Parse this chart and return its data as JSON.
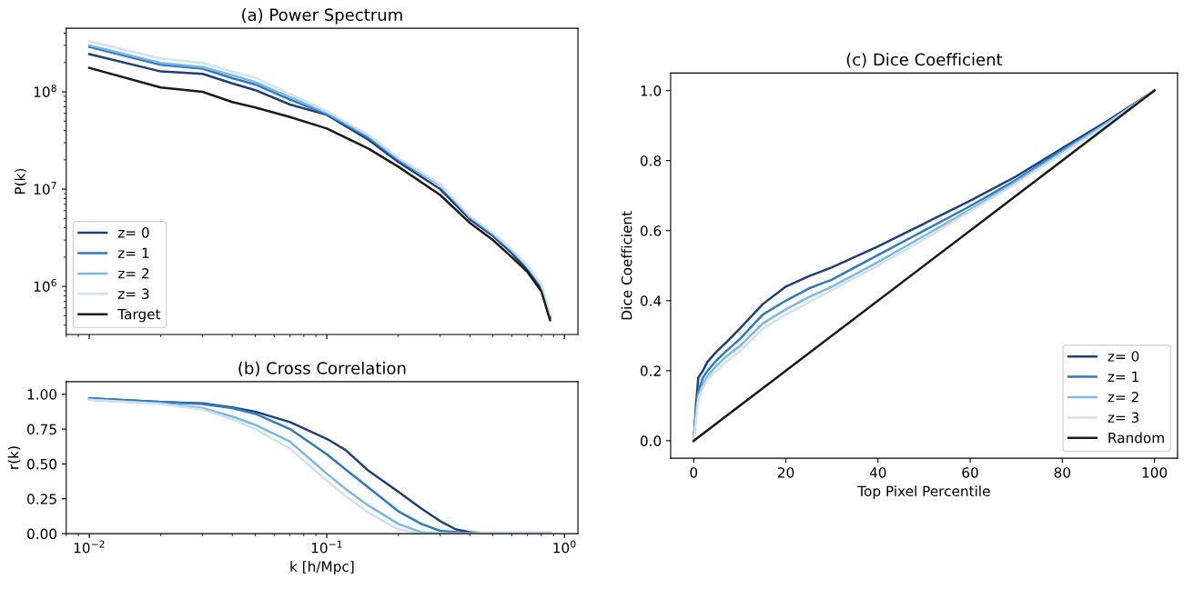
{
  "chart_data": [
    {
      "type": "line",
      "title": "(a) Power Spectrum",
      "ylabel": "P(k)",
      "log": "xy",
      "legend": "bottom left",
      "grid": false,
      "tick_labels": "y",
      "xlim": [
        0.008,
        1.14
      ],
      "xticks": [
        {
          "value": 0.01,
          "label": null
        },
        {
          "value": 0.1,
          "label": null
        },
        {
          "value": 1,
          "label": null
        }
      ],
      "ylim": [
        320000,
        450000000
      ],
      "yticks": [
        {
          "value": 1000000,
          "label": "10$^{6}$"
        },
        {
          "value": 10000000,
          "label": "10$^{7}$"
        },
        {
          "value": 100000000,
          "label": "10$^{8}$"
        }
      ],
      "x": [
        0.01,
        0.02,
        0.03,
        0.04,
        0.05,
        0.07,
        0.1,
        0.15,
        0.2,
        0.3,
        0.4,
        0.5,
        0.6,
        0.7,
        0.8,
        0.87
      ],
      "series": [
        {
          "name": "z= 0",
          "color": "#1f3f7a",
          "values": [
            244000000,
            162000000,
            153000000,
            122000000,
            104000000,
            74000000,
            58000000,
            32000000,
            19000000,
            10000000,
            4900000,
            3300000,
            2200000,
            1460000,
            930000,
            470000
          ]
        },
        {
          "name": "z= 1",
          "color": "#2f7bc0",
          "values": [
            290000000,
            190000000,
            173000000,
            138000000,
            119000000,
            83000000,
            59000000,
            34000000,
            20000000,
            11000000,
            5100000,
            3400000,
            2300000,
            1600000,
            1000000,
            490000
          ]
        },
        {
          "name": "z= 2",
          "color": "#7cb8e0",
          "values": [
            300000000,
            198000000,
            180000000,
            148000000,
            126000000,
            88000000,
            61000000,
            35000000,
            20500000,
            11000000,
            5200000,
            3500000,
            2350000,
            1600000,
            1030000,
            500000
          ]
        },
        {
          "name": "z= 3",
          "color": "#cfe1f2",
          "values": [
            330000000,
            220000000,
            198000000,
            162000000,
            140000000,
            95000000,
            63000000,
            36000000,
            21000000,
            11200000,
            5300000,
            3550000,
            2400000,
            1620000,
            1050000,
            510000
          ]
        },
        {
          "name": "Target",
          "color": "#1a1a1a",
          "values": [
            176000000,
            111000000,
            100000000,
            78500000,
            69000000,
            55000000,
            42000000,
            26000000,
            17000000,
            8700000,
            4500000,
            3000000,
            2000000,
            1400000,
            890000,
            450000
          ]
        }
      ]
    },
    {
      "type": "line",
      "title": "(b) Cross Correlation",
      "xlabel": "k [h/Mpc]",
      "ylabel": "r(k)",
      "log": "x",
      "legend": false,
      "grid": false,
      "xlim": [
        0.008,
        1.14
      ],
      "xticks": [
        {
          "value": 0.01,
          "label": "10$^{−2}$"
        },
        {
          "value": 0.1,
          "label": "10$^{−1}$"
        },
        {
          "value": 1,
          "label": "10$^{0}$"
        }
      ],
      "ylim": [
        0,
        1.09
      ],
      "yticks": [
        {
          "value": 0,
          "label": "0.00"
        },
        {
          "value": 0.25,
          "label": "0.25"
        },
        {
          "value": 0.5,
          "label": "0.50"
        },
        {
          "value": 0.75,
          "label": "0.75"
        },
        {
          "value": 1,
          "label": "1.00"
        }
      ],
      "x": [
        0.01,
        0.02,
        0.03,
        0.04,
        0.05,
        0.07,
        0.1,
        0.12,
        0.15,
        0.2,
        0.25,
        0.3,
        0.35,
        0.4,
        0.5,
        0.87
      ],
      "series": [
        {
          "color": "#1f3f7a",
          "values": [
            0.97,
            0.945,
            0.935,
            0.905,
            0.875,
            0.8,
            0.68,
            0.6,
            0.45,
            0.3,
            0.18,
            0.09,
            0.03,
            0.01,
            0,
            0
          ]
        },
        {
          "color": "#2f7bc0",
          "values": [
            0.97,
            0.945,
            0.93,
            0.9,
            0.86,
            0.75,
            0.57,
            0.46,
            0.33,
            0.16,
            0.07,
            0.02,
            0.01,
            0,
            0,
            0
          ]
        },
        {
          "color": "#7cb8e0",
          "values": [
            0.96,
            0.935,
            0.9,
            0.84,
            0.78,
            0.66,
            0.43,
            0.32,
            0.2,
            0.07,
            0.01,
            0,
            0,
            0,
            0,
            0.01
          ]
        },
        {
          "color": "#cfe1f2",
          "values": [
            0.96,
            0.93,
            0.89,
            0.82,
            0.75,
            0.61,
            0.38,
            0.27,
            0.15,
            0.03,
            0,
            0,
            0,
            0,
            0.01,
            0.01
          ]
        }
      ]
    },
    {
      "type": "line",
      "title": "(c) Dice Coefficient",
      "xlabel": "Top Pixel Percentile",
      "ylabel": "Dice Coefficient",
      "legend": "bottom right",
      "grid": false,
      "xlim": [
        -5,
        105
      ],
      "xticks": [
        0,
        20,
        40,
        60,
        80,
        100
      ],
      "ylim": [
        -0.05,
        1.05
      ],
      "yticks": [
        {
          "value": 0,
          "label": "0.0"
        },
        0.2,
        0.4,
        0.6,
        0.8,
        {
          "value": 1,
          "label": "1.0"
        }
      ],
      "x": [
        0,
        0.5,
        1,
        2,
        3,
        5,
        7,
        10,
        15,
        20,
        25,
        30,
        40,
        50,
        60,
        70,
        80,
        90,
        100
      ],
      "series": [
        {
          "name": "z= 0",
          "color": "#1f3f7a",
          "values": [
            0,
            0.1,
            0.18,
            0.2,
            0.225,
            0.255,
            0.28,
            0.32,
            0.39,
            0.44,
            0.47,
            0.495,
            0.555,
            0.62,
            0.685,
            0.755,
            0.835,
            0.915,
            1.0
          ]
        },
        {
          "name": "z= 1",
          "color": "#2f7bc0",
          "values": [
            0,
            0.08,
            0.14,
            0.18,
            0.2,
            0.23,
            0.255,
            0.29,
            0.36,
            0.4,
            0.435,
            0.46,
            0.53,
            0.6,
            0.67,
            0.745,
            0.83,
            0.91,
            1.0
          ]
        },
        {
          "name": "z= 2",
          "color": "#7cb8e0",
          "values": [
            0,
            0.07,
            0.13,
            0.16,
            0.185,
            0.215,
            0.24,
            0.27,
            0.335,
            0.375,
            0.41,
            0.44,
            0.51,
            0.585,
            0.66,
            0.74,
            0.825,
            0.91,
            1.0
          ]
        },
        {
          "name": "z= 3",
          "color": "#cfe1f2",
          "values": [
            0,
            0.06,
            0.12,
            0.15,
            0.175,
            0.2,
            0.225,
            0.255,
            0.32,
            0.36,
            0.395,
            0.43,
            0.5,
            0.575,
            0.655,
            0.735,
            0.82,
            0.905,
            1.0
          ]
        },
        {
          "name": "Random",
          "color": "#1a1a1a",
          "x": [
            0,
            100
          ],
          "values": [
            0,
            1.0
          ]
        }
      ]
    }
  ]
}
